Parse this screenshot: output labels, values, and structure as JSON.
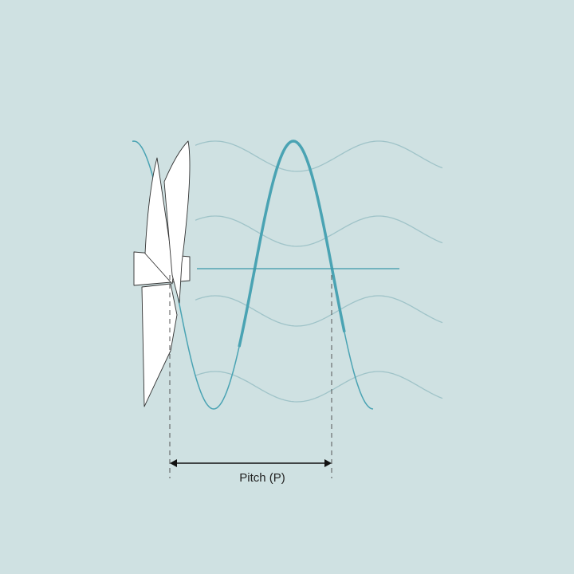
{
  "diagram": {
    "label": "Pitch (P)"
  }
}
